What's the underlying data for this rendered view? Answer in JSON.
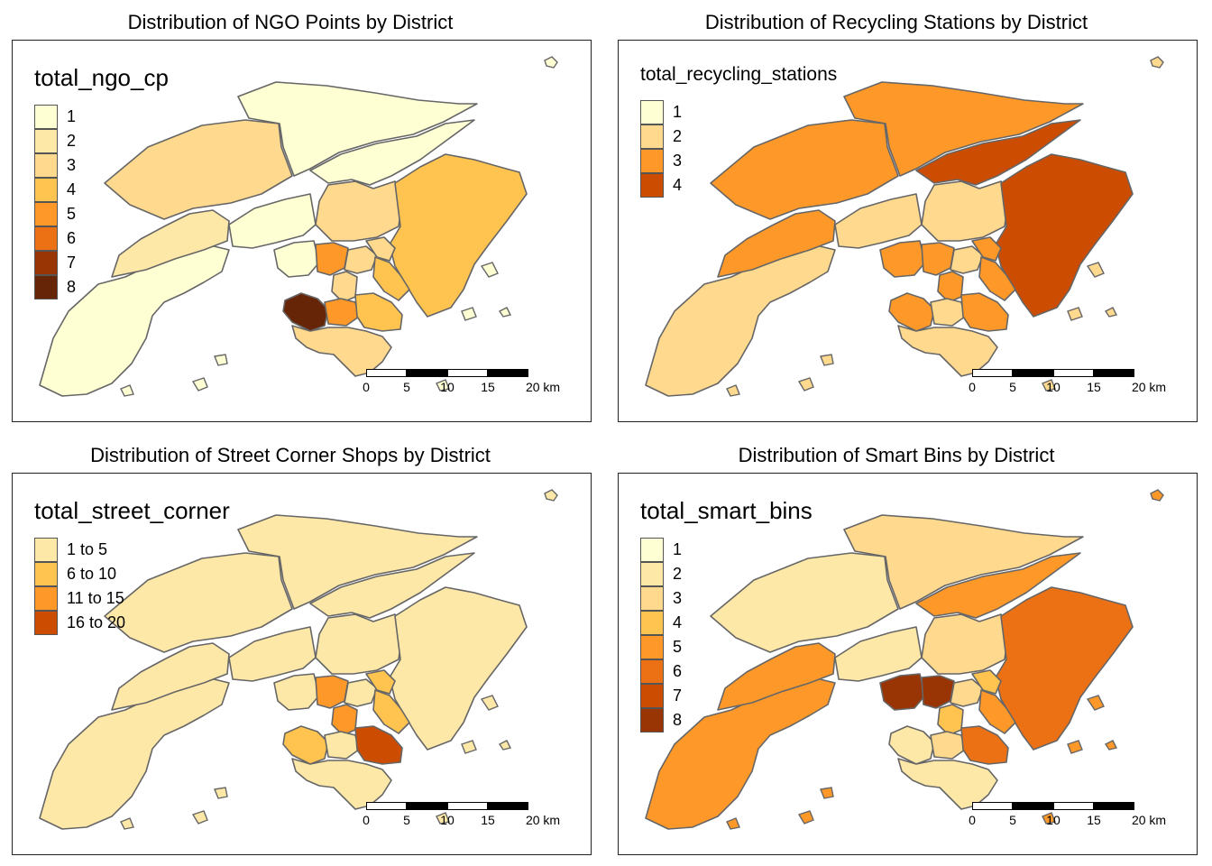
{
  "colors": {
    "c1": "#ffffd4",
    "c2": "#fee8a8",
    "c3": "#fed98e",
    "c4": "#fec44f",
    "c5": "#fe9929",
    "c6": "#ec7014",
    "c7": "#cc4c02",
    "c8": "#993404",
    "c9": "#662506",
    "border": "#666666"
  },
  "scale": {
    "labels": [
      "0",
      "5",
      "10",
      "15",
      "20 km"
    ]
  },
  "panels": [
    {
      "title": "Distribution of NGO Points by District",
      "legend_title": "total_ngo_cp",
      "legend": [
        {
          "label": "1",
          "color": "#ffffd4"
        },
        {
          "label": "2",
          "color": "#fee8a8"
        },
        {
          "label": "3",
          "color": "#fed98e"
        },
        {
          "label": "4",
          "color": "#fec44f"
        },
        {
          "label": "5",
          "color": "#fe9929"
        },
        {
          "label": "6",
          "color": "#ec7014"
        },
        {
          "label": "7",
          "color": "#993404"
        },
        {
          "label": "8",
          "color": "#662506"
        }
      ],
      "districts": {
        "islands": "#ffffd4",
        "tuen_mun": "#fee8a8",
        "yuen_long": "#fed98e",
        "north": "#ffffd4",
        "tai_po": "#ffffd4",
        "shatin": "#fed98e",
        "sai_kung": "#fec44f",
        "tsuen_wan": "#ffffd4",
        "kwai_tsing": "#ffffd4",
        "sham_shui_po": "#fe9929",
        "kowloon_city": "#fed98e",
        "wong_tai_sin": "#fed98e",
        "kwun_tong": "#fec44f",
        "yau_tsim_mong": "#fed98e",
        "central_western": "#662506",
        "wan_chai": "#fe9929",
        "eastern": "#fec44f",
        "southern": "#fed98e"
      }
    },
    {
      "title": "Distribution of Recycling Stations by District",
      "legend_title": "total_recycling_stations",
      "legend": [
        {
          "label": "1",
          "color": "#ffffd4"
        },
        {
          "label": "2",
          "color": "#fed98e"
        },
        {
          "label": "3",
          "color": "#fe9929"
        },
        {
          "label": "4",
          "color": "#cc4c02"
        }
      ],
      "districts": {
        "islands": "#fed98e",
        "tuen_mun": "#fe9929",
        "yuen_long": "#fe9929",
        "north": "#fe9929",
        "tai_po": "#cc4c02",
        "shatin": "#fed98e",
        "sai_kung": "#cc4c02",
        "tsuen_wan": "#fed98e",
        "kwai_tsing": "#fe9929",
        "sham_shui_po": "#fe9929",
        "kowloon_city": "#fed98e",
        "wong_tai_sin": "#fe9929",
        "kwun_tong": "#fe9929",
        "yau_tsim_mong": "#fe9929",
        "central_western": "#fe9929",
        "wan_chai": "#fed98e",
        "eastern": "#fe9929",
        "southern": "#fed98e"
      }
    },
    {
      "title": "Distribution of Street Corner Shops by District",
      "legend_title": "total_street_corner",
      "legend": [
        {
          "label": "1 to 5",
          "color": "#fee8a8"
        },
        {
          "label": "6 to 10",
          "color": "#fec44f"
        },
        {
          "label": "11 to 15",
          "color": "#fe9929"
        },
        {
          "label": "16 to 20",
          "color": "#cc4c02"
        }
      ],
      "districts": {
        "islands": "#fee8a8",
        "tuen_mun": "#fee8a8",
        "yuen_long": "#fee8a8",
        "north": "#fee8a8",
        "tai_po": "#fee8a8",
        "shatin": "#fee8a8",
        "sai_kung": "#fee8a8",
        "tsuen_wan": "#fee8a8",
        "kwai_tsing": "#fee8a8",
        "sham_shui_po": "#fe9929",
        "kowloon_city": "#fee8a8",
        "wong_tai_sin": "#fec44f",
        "kwun_tong": "#fec44f",
        "yau_tsim_mong": "#fe9929",
        "central_western": "#fec44f",
        "wan_chai": "#fee8a8",
        "eastern": "#cc4c02",
        "southern": "#fee8a8"
      }
    },
    {
      "title": "Distribution of Smart Bins by District",
      "legend_title": "total_smart_bins",
      "legend": [
        {
          "label": "1",
          "color": "#ffffd4"
        },
        {
          "label": "2",
          "color": "#fee8a8"
        },
        {
          "label": "3",
          "color": "#fed98e"
        },
        {
          "label": "4",
          "color": "#fec44f"
        },
        {
          "label": "5",
          "color": "#fe9929"
        },
        {
          "label": "6",
          "color": "#ec7014"
        },
        {
          "label": "7",
          "color": "#cc4c02"
        },
        {
          "label": "8",
          "color": "#993404"
        }
      ],
      "districts": {
        "islands": "#fe9929",
        "tuen_mun": "#fe9929",
        "yuen_long": "#fee8a8",
        "north": "#fed98e",
        "tai_po": "#fe9929",
        "shatin": "#fed98e",
        "sai_kung": "#ec7014",
        "tsuen_wan": "#fee8a8",
        "kwai_tsing": "#993404",
        "sham_shui_po": "#993404",
        "kowloon_city": "#fed98e",
        "wong_tai_sin": "#fec44f",
        "kwun_tong": "#fe9929",
        "yau_tsim_mong": "#fec44f",
        "central_western": "#fee8a8",
        "wan_chai": "#fed98e",
        "eastern": "#ec7014",
        "southern": "#fee8a8"
      }
    }
  ]
}
